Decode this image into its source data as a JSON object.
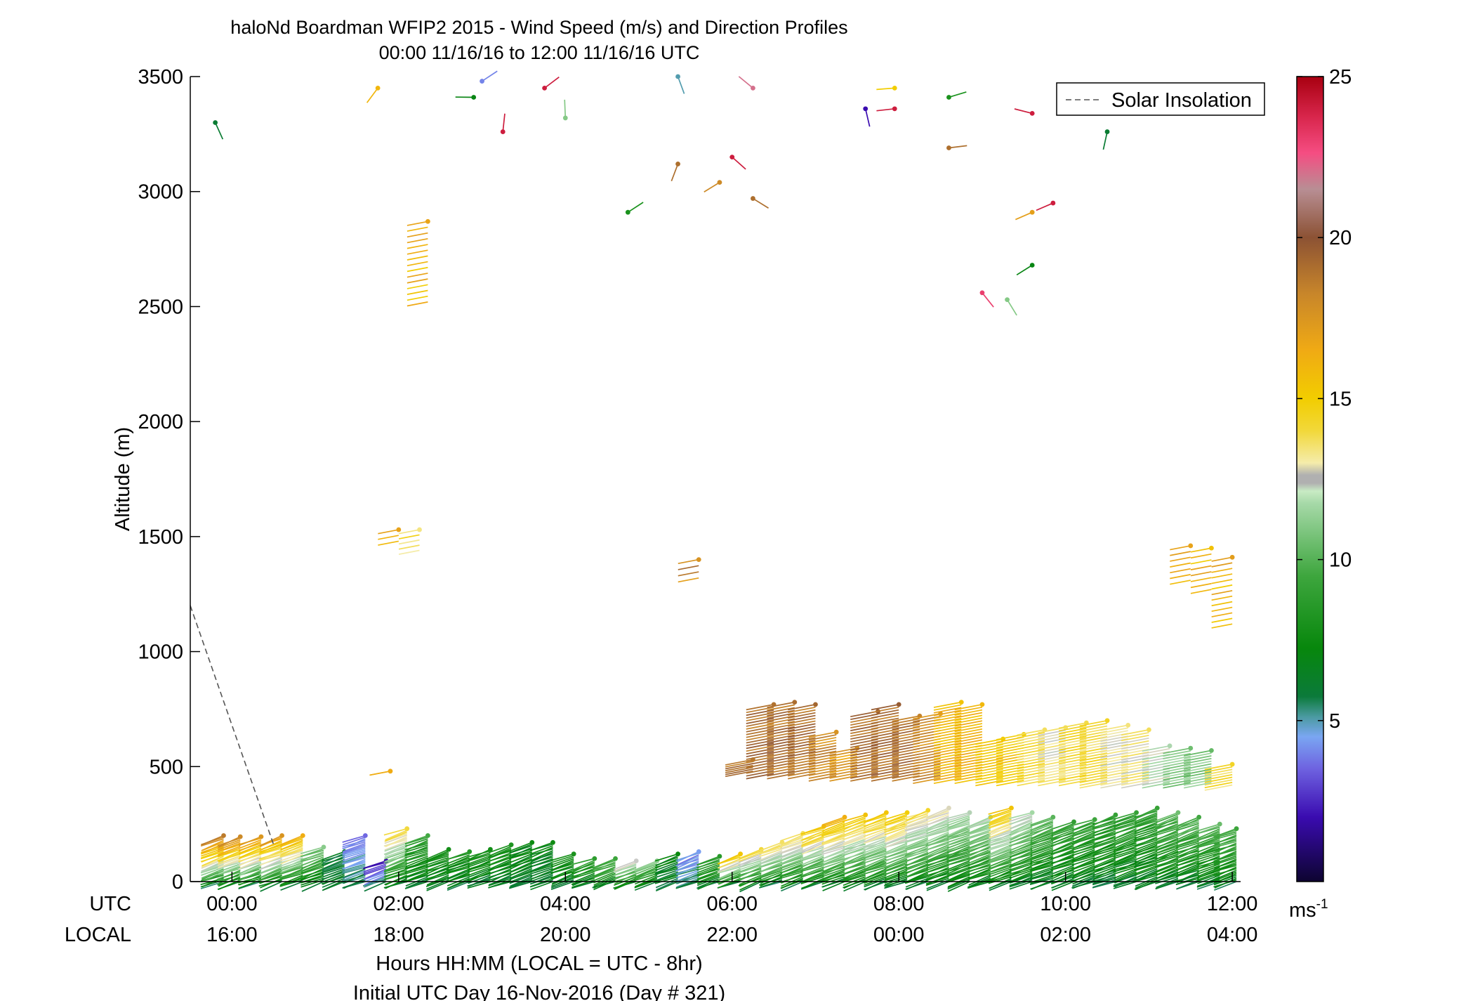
{
  "chart_data": {
    "type": "wind-barb-profile",
    "title": "haloNd Boardman WFIP2 2015 - Wind Speed (m/s) and Direction Profiles",
    "subtitle": "00:00 11/16/16 to 12:00 11/16/16  UTC",
    "ylabel": "Altitude (m)",
    "xlabel": "Hours HH:MM  (LOCAL = UTC - 8hr)",
    "xlabel2": "Initial UTC Day 16-Nov-2016 (Day # 321)",
    "row_label_utc": "UTC",
    "row_label_local": "LOCAL",
    "xlim_hours": [
      -0.5,
      12.1
    ],
    "ylim": [
      0,
      3500
    ],
    "x_ticks_hours": [
      0,
      2,
      4,
      6,
      8,
      10,
      12
    ],
    "x_tick_labels_utc": [
      "00:00",
      "02:00",
      "04:00",
      "06:00",
      "08:00",
      "10:00",
      "12:00"
    ],
    "x_tick_labels_local": [
      "16:00",
      "18:00",
      "20:00",
      "22:00",
      "00:00",
      "02:00",
      "04:00"
    ],
    "y_ticks": [
      0,
      500,
      1000,
      1500,
      2000,
      2500,
      3000,
      3500
    ],
    "legend": {
      "entries": [
        "Solar Insolation"
      ],
      "placement": "top-right"
    },
    "colorbar": {
      "unit": "ms",
      "unit_superscript": "-1",
      "ticks": [
        5,
        10,
        15,
        20,
        25
      ],
      "range": [
        0,
        25
      ]
    },
    "solar_insolation": {
      "x_hours": [
        -0.5,
        0.5
      ],
      "y": [
        1200,
        160
      ]
    },
    "low_level_profiles": [
      {
        "t": -0.1,
        "top": 200,
        "top_ws": 18
      },
      {
        "t": 0.1,
        "top": 195,
        "top_ws": 18
      },
      {
        "t": 0.35,
        "top": 195,
        "top_ws": 17
      },
      {
        "t": 0.6,
        "top": 200,
        "top_ws": 17
      },
      {
        "t": 0.85,
        "top": 200,
        "top_ws": 16
      },
      {
        "t": 1.1,
        "top": 150,
        "top_ws": 11
      },
      {
        "t": 1.35,
        "top": 130,
        "top_ws": 6
      },
      {
        "t": 1.6,
        "top": 200,
        "top_ws": 4
      },
      {
        "t": 1.85,
        "top": 90,
        "top_ws": 2
      },
      {
        "t": 2.1,
        "top": 230,
        "top_ws": 14
      },
      {
        "t": 2.35,
        "top": 200,
        "top_ws": 9
      },
      {
        "t": 2.6,
        "top": 140,
        "top_ws": 8
      },
      {
        "t": 2.85,
        "top": 130,
        "top_ws": 8
      },
      {
        "t": 3.1,
        "top": 140,
        "top_ws": 8
      },
      {
        "t": 3.35,
        "top": 160,
        "top_ws": 8
      },
      {
        "t": 3.6,
        "top": 170,
        "top_ws": 7
      },
      {
        "t": 3.85,
        "top": 170,
        "top_ws": 7
      },
      {
        "t": 4.1,
        "top": 120,
        "top_ws": 8
      },
      {
        "t": 4.35,
        "top": 100,
        "top_ws": 9
      },
      {
        "t": 4.6,
        "top": 100,
        "top_ws": 10
      },
      {
        "t": 4.85,
        "top": 90,
        "top_ws": 13
      },
      {
        "t": 5.1,
        "top": 90,
        "top_ws": 11
      },
      {
        "t": 5.35,
        "top": 120,
        "top_ws": 7
      },
      {
        "t": 5.6,
        "top": 130,
        "top_ws": 4
      },
      {
        "t": 5.85,
        "top": 110,
        "top_ws": 9
      },
      {
        "t": 6.1,
        "top": 120,
        "top_ws": 15
      },
      {
        "t": 6.35,
        "top": 140,
        "top_ws": 14
      },
      {
        "t": 6.6,
        "top": 170,
        "top_ws": 14
      },
      {
        "t": 6.85,
        "top": 210,
        "top_ws": 14
      },
      {
        "t": 7.1,
        "top": 240,
        "top_ws": 15
      },
      {
        "t": 7.35,
        "top": 280,
        "top_ws": 16
      },
      {
        "t": 7.6,
        "top": 290,
        "top_ws": 15
      },
      {
        "t": 7.85,
        "top": 300,
        "top_ws": 15
      },
      {
        "t": 8.1,
        "top": 300,
        "top_ws": 15
      },
      {
        "t": 8.35,
        "top": 310,
        "top_ws": 14
      },
      {
        "t": 8.6,
        "top": 320,
        "top_ws": 13
      },
      {
        "t": 8.85,
        "top": 300,
        "top_ws": 12
      },
      {
        "t": 9.1,
        "top": 280,
        "top_ws": 12
      },
      {
        "t": 9.35,
        "top": 320,
        "top_ws": 15
      },
      {
        "t": 9.6,
        "top": 300,
        "top_ws": 12
      },
      {
        "t": 9.85,
        "top": 280,
        "top_ws": 10
      },
      {
        "t": 10.1,
        "top": 260,
        "top_ws": 9
      },
      {
        "t": 10.35,
        "top": 270,
        "top_ws": 9
      },
      {
        "t": 10.6,
        "top": 290,
        "top_ws": 9
      },
      {
        "t": 10.85,
        "top": 300,
        "top_ws": 9
      },
      {
        "t": 11.1,
        "top": 320,
        "top_ws": 9
      },
      {
        "t": 11.35,
        "top": 300,
        "top_ws": 10
      },
      {
        "t": 11.6,
        "top": 280,
        "top_ws": 10
      },
      {
        "t": 11.85,
        "top": 250,
        "top_ws": 10
      },
      {
        "t": 12.05,
        "top": 230,
        "top_ws": 10
      }
    ],
    "elevated_profiles": [
      {
        "t": 6.25,
        "bottom": 480,
        "top": 530,
        "ws": 19
      },
      {
        "t": 6.5,
        "bottom": 470,
        "top": 770,
        "ws": 19
      },
      {
        "t": 6.75,
        "bottom": 470,
        "top": 780,
        "ws": 19
      },
      {
        "t": 7.0,
        "bottom": 470,
        "top": 770,
        "ws": 19
      },
      {
        "t": 7.25,
        "bottom": 460,
        "top": 650,
        "ws": 18
      },
      {
        "t": 7.5,
        "bottom": 460,
        "top": 580,
        "ws": 17
      },
      {
        "t": 7.75,
        "bottom": 460,
        "top": 740,
        "ws": 19
      },
      {
        "t": 8.0,
        "bottom": 460,
        "top": 770,
        "ws": 19
      },
      {
        "t": 8.25,
        "bottom": 460,
        "top": 720,
        "ws": 19
      },
      {
        "t": 8.5,
        "bottom": 450,
        "top": 730,
        "ws": 18
      },
      {
        "t": 8.75,
        "bottom": 450,
        "top": 780,
        "ws": 16
      },
      {
        "t": 9.0,
        "bottom": 450,
        "top": 770,
        "ws": 16
      },
      {
        "t": 9.25,
        "bottom": 440,
        "top": 620,
        "ws": 15
      },
      {
        "t": 9.5,
        "bottom": 440,
        "top": 640,
        "ws": 15
      },
      {
        "t": 9.75,
        "bottom": 440,
        "top": 660,
        "ws": 14
      },
      {
        "t": 10.0,
        "bottom": 440,
        "top": 670,
        "ws": 13
      },
      {
        "t": 10.25,
        "bottom": 440,
        "top": 690,
        "ws": 14
      },
      {
        "t": 10.5,
        "bottom": 430,
        "top": 700,
        "ws": 14
      },
      {
        "t": 10.75,
        "bottom": 430,
        "top": 680,
        "ws": 13
      },
      {
        "t": 11.0,
        "bottom": 430,
        "top": 660,
        "ws": 13
      },
      {
        "t": 11.25,
        "bottom": 430,
        "top": 590,
        "ws": 12
      },
      {
        "t": 11.5,
        "bottom": 430,
        "top": 580,
        "ws": 11
      },
      {
        "t": 11.75,
        "bottom": 430,
        "top": 570,
        "ws": 11
      },
      {
        "t": 12.0,
        "bottom": 420,
        "top": 510,
        "ws": 14
      }
    ],
    "mid_level_clusters": [
      {
        "t": 2.35,
        "bottom": 2520,
        "top": 2870,
        "ws": 16
      },
      {
        "t": 2.0,
        "bottom": 1480,
        "top": 1530,
        "ws": 16
      },
      {
        "t": 2.25,
        "bottom": 1440,
        "top": 1530,
        "ws": 14
      },
      {
        "t": 1.9,
        "bottom": 480,
        "top": 480,
        "ws": 16
      },
      {
        "t": 5.6,
        "bottom": 1320,
        "top": 1400,
        "ws": 18
      },
      {
        "t": 11.5,
        "bottom": 1310,
        "top": 1460,
        "ws": 16
      },
      {
        "t": 11.75,
        "bottom": 1270,
        "top": 1450,
        "ws": 16
      },
      {
        "t": 12.0,
        "bottom": 1120,
        "top": 1410,
        "ws": 16
      }
    ],
    "upper_sparse_barbs": [
      {
        "t": -0.2,
        "alt": 3300,
        "ws": 6
      },
      {
        "t": 1.75,
        "alt": 3450,
        "ws": 16
      },
      {
        "t": 2.9,
        "alt": 3410,
        "ws": 7
      },
      {
        "t": 3.0,
        "alt": 3480,
        "ws": 4
      },
      {
        "t": 3.25,
        "alt": 3260,
        "ws": 24
      },
      {
        "t": 3.75,
        "alt": 3450,
        "ws": 24
      },
      {
        "t": 4.0,
        "alt": 3320,
        "ws": 11
      },
      {
        "t": 4.75,
        "alt": 2910,
        "ws": 8
      },
      {
        "t": 5.35,
        "alt": 3500,
        "ws": 5
      },
      {
        "t": 5.35,
        "alt": 3120,
        "ws": 19
      },
      {
        "t": 5.85,
        "alt": 3040,
        "ws": 18
      },
      {
        "t": 6.0,
        "alt": 3150,
        "ws": 24
      },
      {
        "t": 6.25,
        "alt": 3450,
        "ws": 22
      },
      {
        "t": 6.25,
        "alt": 2970,
        "ws": 19
      },
      {
        "t": 7.6,
        "alt": 3360,
        "ws": 2
      },
      {
        "t": 7.95,
        "alt": 3450,
        "ws": 15
      },
      {
        "t": 7.95,
        "alt": 3360,
        "ws": 24
      },
      {
        "t": 8.6,
        "alt": 3410,
        "ws": 8
      },
      {
        "t": 8.6,
        "alt": 3190,
        "ws": 19
      },
      {
        "t": 9.0,
        "alt": 2560,
        "ws": 23
      },
      {
        "t": 9.3,
        "alt": 2530,
        "ws": 11
      },
      {
        "t": 9.6,
        "alt": 2910,
        "ws": 17
      },
      {
        "t": 9.6,
        "alt": 2680,
        "ws": 7
      },
      {
        "t": 9.6,
        "alt": 3340,
        "ws": 24
      },
      {
        "t": 9.85,
        "alt": 2950,
        "ws": 24
      },
      {
        "t": 10.5,
        "alt": 3260,
        "ws": 6
      }
    ]
  }
}
